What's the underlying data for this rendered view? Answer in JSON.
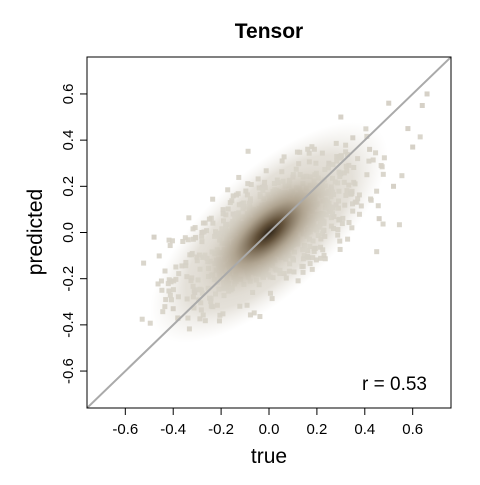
{
  "chart_data": {
    "type": "scatter",
    "title": "Tensor",
    "xlabel": "true",
    "ylabel": "predicted",
    "xlim": [
      -0.76,
      0.76
    ],
    "ylim": [
      -0.76,
      0.76
    ],
    "x_ticks": [
      -0.6,
      -0.4,
      -0.2,
      0.0,
      0.2,
      0.4,
      0.6
    ],
    "y_ticks": [
      -0.6,
      -0.4,
      -0.2,
      0.0,
      0.2,
      0.4,
      0.6
    ],
    "x_tick_labels": [
      "-0.6",
      "-0.4",
      "-0.2",
      "0.0",
      "0.2",
      "0.4",
      "0.6"
    ],
    "y_tick_labels": [
      "-0.6",
      "-0.4",
      "-0.2",
      "0.0",
      "0.2",
      "0.4",
      "0.6"
    ],
    "grid": false,
    "reference_line": {
      "type": "identity",
      "from": [
        -0.76,
        -0.76
      ],
      "to": [
        0.76,
        0.76
      ],
      "color": "#aaaaaa"
    },
    "annotation": "r = 0.53",
    "correlation": 0.53,
    "point_cloud": {
      "x_range": [
        -0.56,
        0.68
      ],
      "y_range": [
        -0.42,
        0.62
      ],
      "density_peak": [
        0.0,
        0.0
      ],
      "point_color": "#d6d1c7",
      "core_color": "#3a2e1e"
    },
    "sample_points": [
      [
        0.06,
        0.08
      ],
      [
        -0.12,
        -0.04
      ],
      [
        0.18,
        0.16
      ],
      [
        -0.05,
        0.02
      ],
      [
        0.25,
        0.3
      ],
      [
        -0.22,
        -0.12
      ],
      [
        0.35,
        0.41
      ],
      [
        0.42,
        0.36
      ],
      [
        -0.31,
        -0.26
      ],
      [
        0.12,
        -0.05
      ],
      [
        0.5,
        0.56
      ],
      [
        -0.4,
        -0.33
      ],
      [
        0.28,
        0.12
      ],
      [
        -0.15,
        0.08
      ],
      [
        0.58,
        0.45
      ],
      [
        -0.48,
        -0.02
      ],
      [
        0.64,
        0.55
      ],
      [
        0.52,
        0.2
      ],
      [
        0.46,
        0.06
      ],
      [
        -0.02,
        0.2
      ],
      [
        0.6,
        0.37
      ],
      [
        0.66,
        0.6
      ],
      [
        0.1,
        0.24
      ],
      [
        -0.28,
        0.0
      ],
      [
        0.3,
        0.5
      ]
    ]
  },
  "colors": {
    "frame": "#000000",
    "reference_line": "#aaaaaa",
    "point": "#d6d1c7",
    "core": "#3a2e1e"
  }
}
